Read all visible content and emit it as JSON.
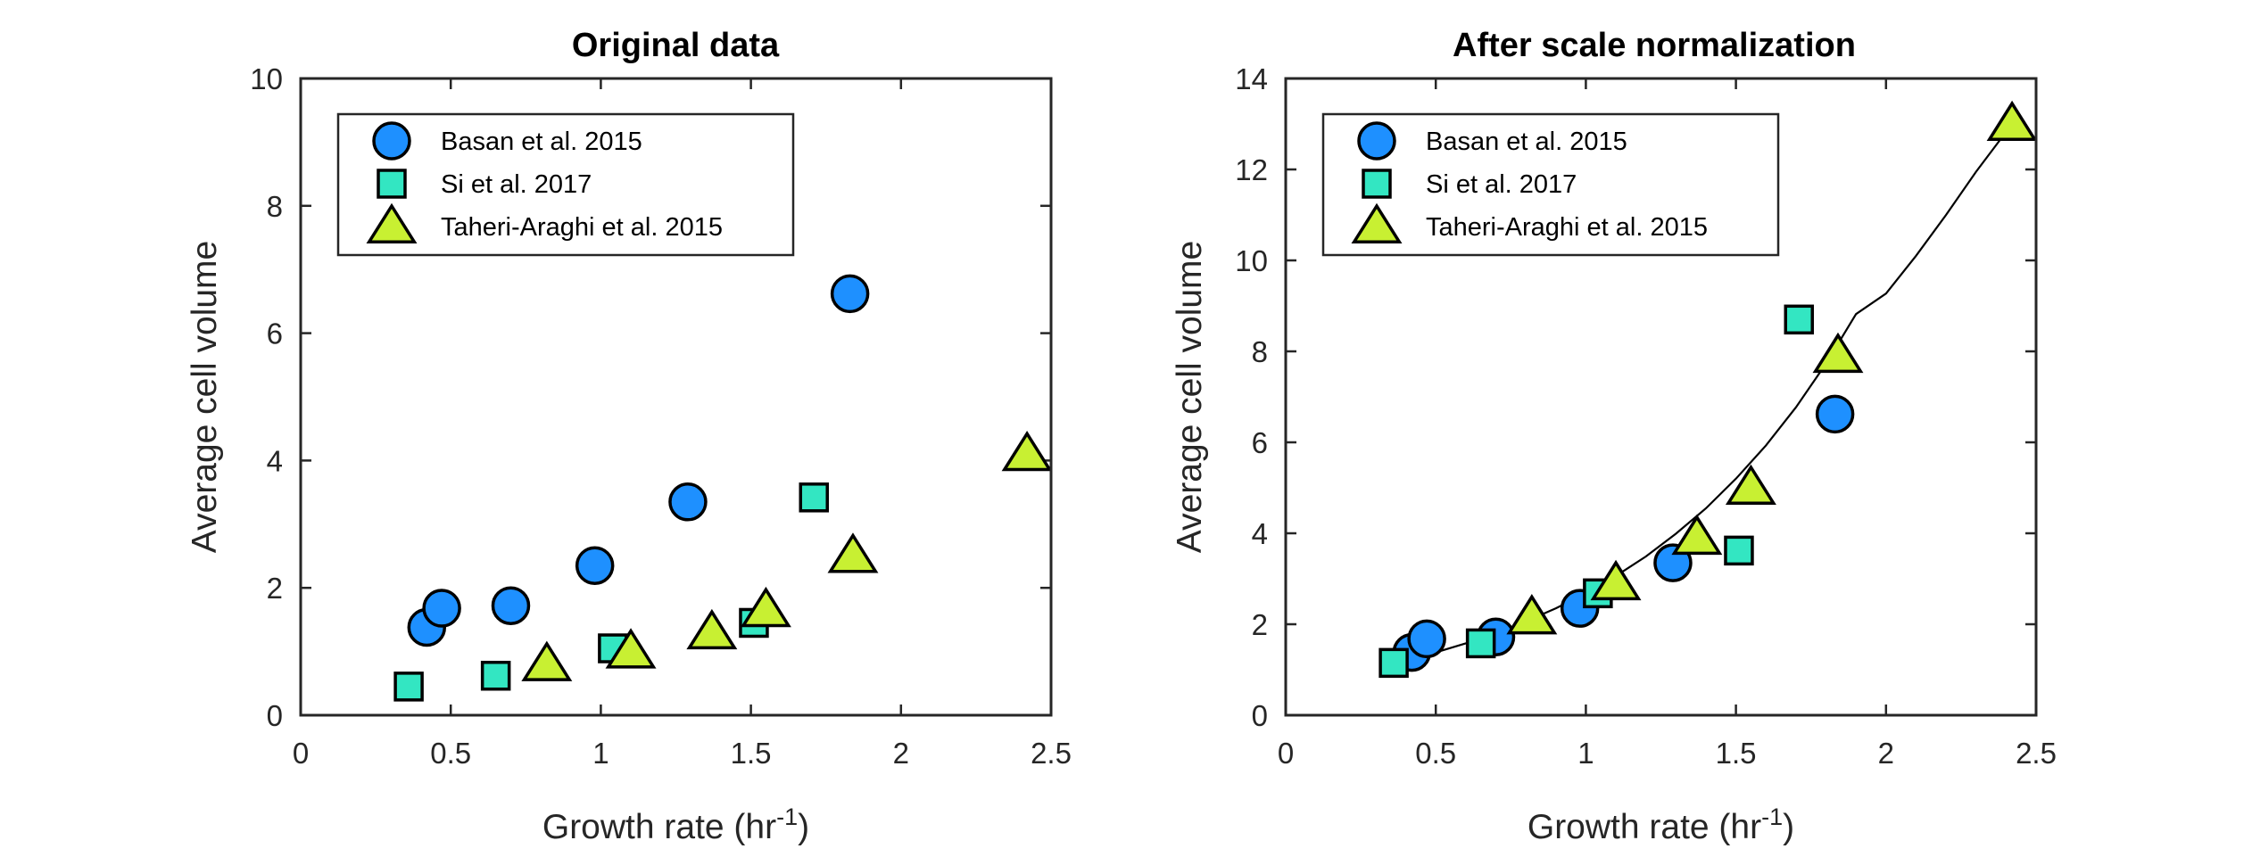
{
  "colors": {
    "basan": "#1e90ff",
    "si": "#33e6c2",
    "taheri": "#c8f032",
    "fit_line": "#000000"
  },
  "chart_data": [
    {
      "type": "scatter",
      "title": "Original data",
      "xlabel": "Growth rate (hr",
      "xlabel_sup": "-1",
      "xlabel_end": ")",
      "ylabel": "Average cell volume",
      "xlim": [
        0,
        2.5
      ],
      "ylim": [
        0,
        10
      ],
      "xticks": [
        "0",
        "0.5",
        "1",
        "1.5",
        "2",
        "2.5"
      ],
      "yticks": [
        "0",
        "2",
        "4",
        "6",
        "8",
        "10"
      ],
      "legend_position": "top-left",
      "series": [
        {
          "name": "Basan et al. 2015",
          "marker": "circle",
          "color": "basan",
          "x": [
            0.42,
            0.47,
            0.7,
            0.98,
            1.29,
            1.83
          ],
          "y": [
            1.38,
            1.68,
            1.72,
            2.35,
            3.35,
            6.62
          ]
        },
        {
          "name": "Si et al. 2017",
          "marker": "square",
          "color": "si",
          "x": [
            0.36,
            0.65,
            1.04,
            1.51,
            1.71
          ],
          "y": [
            0.45,
            0.62,
            1.05,
            1.45,
            3.42
          ]
        },
        {
          "name": "Taheri-Araghi et al. 2015",
          "marker": "triangle",
          "color": "taheri",
          "x": [
            0.82,
            1.1,
            1.37,
            1.55,
            1.84,
            2.42
          ],
          "y": [
            0.8,
            1.0,
            1.3,
            1.65,
            2.5,
            4.1
          ]
        }
      ]
    },
    {
      "type": "scatter",
      "title": "After scale normalization",
      "xlabel": "Growth rate (hr",
      "xlabel_sup": "-1",
      "xlabel_end": ")",
      "ylabel": "Average cell volume",
      "xlim": [
        0,
        2.5
      ],
      "ylim": [
        0,
        14
      ],
      "xticks": [
        "0",
        "0.5",
        "1",
        "1.5",
        "2",
        "2.5"
      ],
      "yticks": [
        "0",
        "2",
        "4",
        "6",
        "8",
        "10",
        "12",
        "14"
      ],
      "legend_position": "top-left",
      "series": [
        {
          "name": "Basan et al. 2015",
          "marker": "circle",
          "color": "basan",
          "x": [
            0.42,
            0.47,
            0.7,
            0.98,
            1.29,
            1.83
          ],
          "y": [
            1.38,
            1.68,
            1.72,
            2.35,
            3.35,
            6.62
          ]
        },
        {
          "name": "Si et al. 2017",
          "marker": "square",
          "color": "si",
          "x": [
            0.36,
            0.65,
            1.04,
            1.51,
            1.71
          ],
          "y": [
            1.15,
            1.58,
            2.68,
            3.62,
            8.7
          ]
        },
        {
          "name": "Taheri-Araghi et al. 2015",
          "marker": "triangle",
          "color": "taheri",
          "x": [
            0.82,
            1.1,
            1.37,
            1.55,
            1.84,
            2.42
          ],
          "y": [
            2.15,
            2.9,
            3.9,
            5.0,
            7.9,
            13.0
          ]
        }
      ],
      "fit_curve": {
        "x": [
          0.36,
          0.5,
          0.6,
          0.7,
          0.8,
          0.9,
          1.0,
          1.1,
          1.2,
          1.3,
          1.4,
          1.5,
          1.6,
          1.7,
          1.8,
          1.9,
          2.0,
          2.1,
          2.2,
          2.3,
          2.42
        ],
        "y": [
          1.13,
          1.38,
          1.58,
          1.8,
          2.06,
          2.35,
          2.68,
          3.06,
          3.49,
          3.99,
          4.55,
          5.2,
          5.93,
          6.77,
          7.73,
          8.82,
          9.27,
          10.1,
          11.0,
          11.95,
          13.0
        ]
      }
    }
  ]
}
